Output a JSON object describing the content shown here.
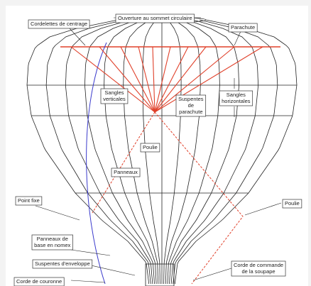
{
  "labels": [
    {
      "lines": [
        "Cordelettes de centrage"
      ]
    },
    {
      "lines": [
        "Ouverture au sommet circulaire"
      ]
    },
    {
      "lines": [
        "Parachute"
      ]
    },
    {
      "lines": [
        "Sangles",
        "verticales"
      ]
    },
    {
      "lines": [
        "Suspentes",
        "de",
        "parachute"
      ]
    },
    {
      "lines": [
        "Sangles",
        "horizontales"
      ]
    },
    {
      "lines": [
        "Poulie"
      ]
    },
    {
      "lines": [
        "Panneaux"
      ]
    },
    {
      "lines": [
        "Point fixe"
      ]
    },
    {
      "lines": [
        "Poulie"
      ]
    },
    {
      "lines": [
        "Panneaux de",
        "base en nomex"
      ]
    },
    {
      "lines": [
        "Suspentes d'enveloppe"
      ]
    },
    {
      "lines": [
        "Corde de couronne"
      ]
    },
    {
      "lines": [
        "Corde de commande",
        "de la soupape"
      ]
    }
  ]
}
